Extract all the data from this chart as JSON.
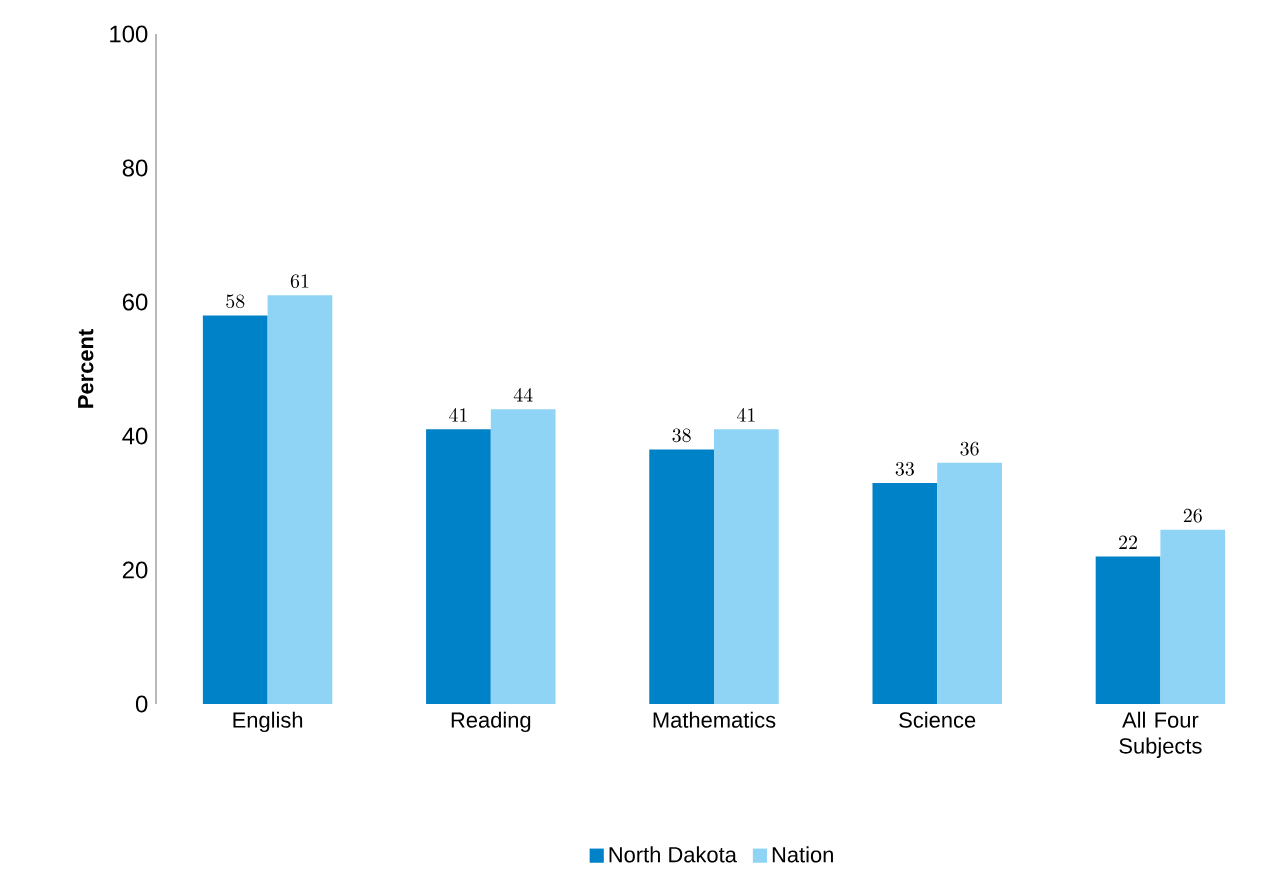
{
  "chart_data": {
    "type": "bar",
    "ylabel": "Percent",
    "categories": [
      "English",
      "Reading",
      "Mathematics",
      "Science",
      "All Four Subjects"
    ],
    "series": [
      {
        "name": "North Dakota",
        "color": "#0082c8",
        "values": [
          58,
          41,
          38,
          33,
          22
        ]
      },
      {
        "name": "Nation",
        "color": "#8fd3f5",
        "values": [
          61,
          44,
          41,
          36,
          26
        ]
      }
    ],
    "ylim": [
      0,
      100
    ],
    "yticks": [
      0,
      20,
      40,
      60,
      80,
      100
    ],
    "data_labels": true,
    "legend": "bottom"
  }
}
